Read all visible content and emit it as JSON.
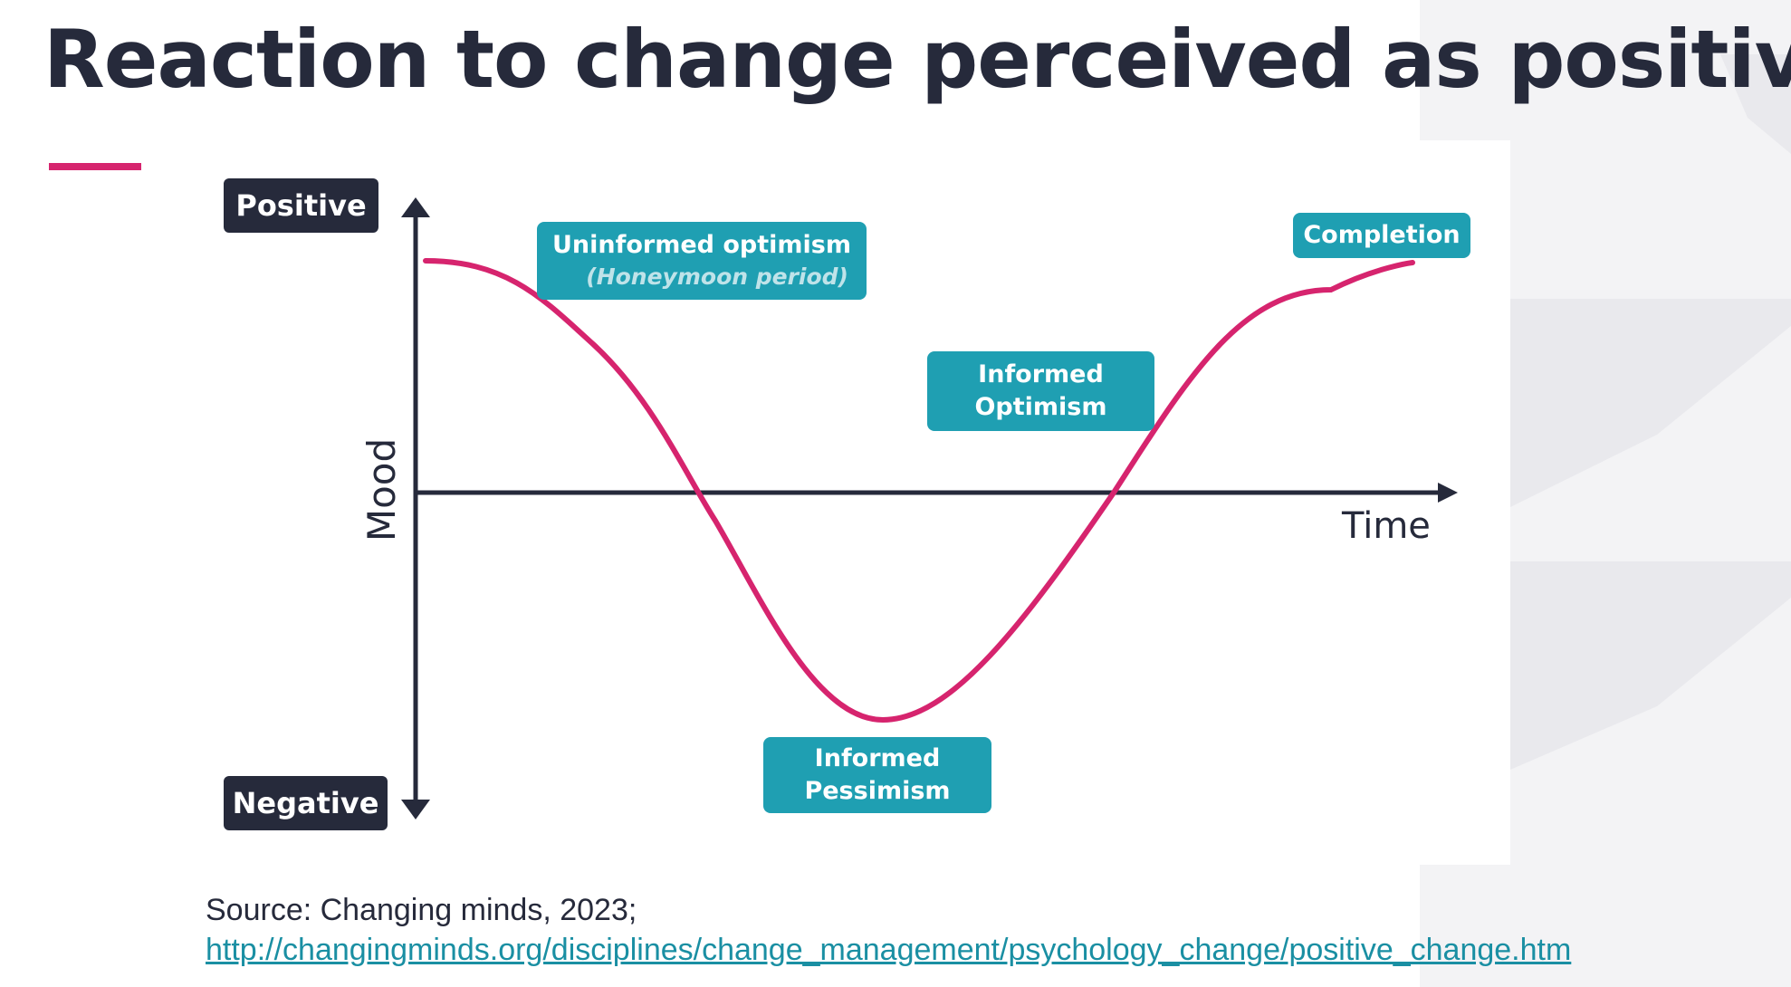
{
  "slide": {
    "title": "Reaction to change perceived as positive",
    "accent_color": "#d6246e",
    "title_color": "#262a3b"
  },
  "diagram": {
    "y_axis": {
      "label": "Mood",
      "top_label": "Positive",
      "bottom_label": "Negative"
    },
    "x_axis": {
      "label": "Time"
    },
    "curve_color": "#d6246e",
    "box_color": "#1f9fb2",
    "stages": [
      {
        "title": "Uninformed optimism",
        "subtitle": "(Honeymoon period)"
      },
      {
        "title_line1": "Informed",
        "title_line2": "Optimism"
      },
      {
        "title_line1": "Informed",
        "title_line2": "Pessimism"
      },
      {
        "title": "Completion"
      }
    ]
  },
  "source": {
    "text": "Source: Changing minds, 2023;",
    "link": "http://changingminds.org/disciplines/change_management/psychology_change/positive_change.htm"
  }
}
